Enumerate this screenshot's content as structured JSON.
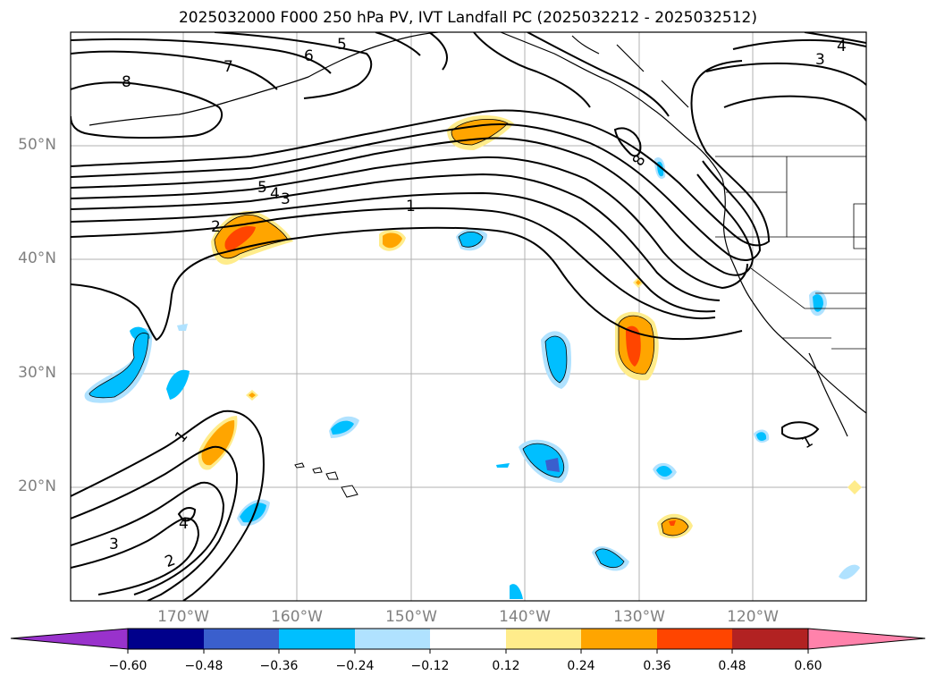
{
  "title": "2025032000 F000 250 hPa PV, IVT Landfall PC (2025032212 - 2025032512)",
  "map": {
    "lat_labels": [
      "50°N",
      "40°N",
      "30°N",
      "20°N"
    ],
    "lon_labels": [
      "170°W",
      "160°W",
      "150°W",
      "140°W",
      "130°W",
      "120°W"
    ],
    "contour_labels": [
      "8",
      "7",
      "6",
      "5",
      "5",
      "4",
      "3",
      "2",
      "1",
      "8",
      "4",
      "3",
      "1",
      "4",
      "3",
      "2",
      "1"
    ]
  },
  "colorbar": {
    "ticks": [
      "−0.60",
      "−0.48",
      "−0.36",
      "−0.24",
      "−0.12",
      "0.12",
      "0.24",
      "0.36",
      "0.48",
      "0.60"
    ],
    "colors": [
      "#9932cc",
      "#00008b",
      "#3a5fcd",
      "#00bfff",
      "#b0e2ff",
      "#ffffff",
      "#ffec8b",
      "#ffa500",
      "#ff4500",
      "#b22222",
      "#ff82ab"
    ]
  }
}
